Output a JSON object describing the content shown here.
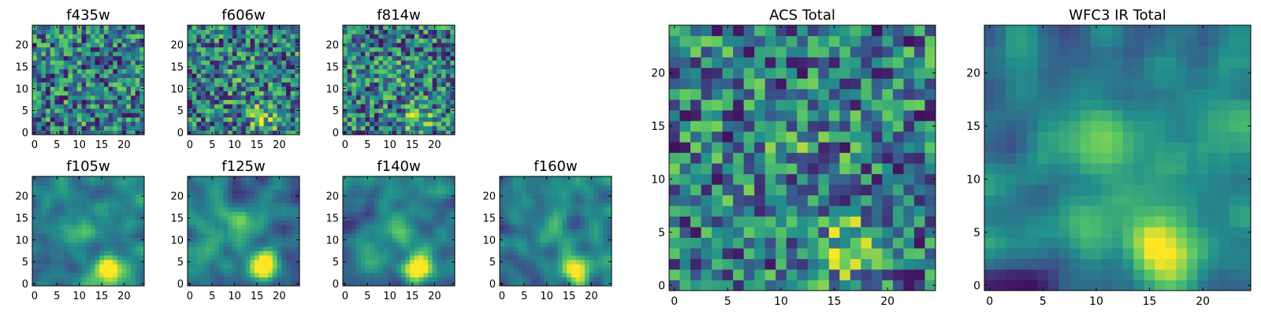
{
  "chart_data": [
    {
      "type": "heatmap",
      "title": "f435w",
      "pattern": "noise",
      "seed": 11,
      "grid_size": [
        25,
        25
      ],
      "x_ticks": [
        "0",
        "5",
        "10",
        "15",
        "20"
      ],
      "y_ticks": [
        "0",
        "5",
        "10",
        "15",
        "20"
      ]
    },
    {
      "type": "heatmap",
      "title": "f606w",
      "pattern": "noise-peak",
      "seed": 23,
      "grid_size": [
        25,
        25
      ],
      "x_ticks": [
        "0",
        "5",
        "10",
        "15",
        "20"
      ],
      "y_ticks": [
        "0",
        "5",
        "10",
        "15",
        "20"
      ]
    },
    {
      "type": "heatmap",
      "title": "f814w",
      "pattern": "noise-peak",
      "seed": 37,
      "grid_size": [
        25,
        25
      ],
      "x_ticks": [
        "0",
        "5",
        "10",
        "15",
        "20"
      ],
      "y_ticks": [
        "0",
        "5",
        "10",
        "15",
        "20"
      ]
    },
    {
      "type": "heatmap",
      "title": "f105w",
      "pattern": "smooth-peak",
      "seed": 41,
      "grid_size": [
        25,
        25
      ],
      "x_ticks": [
        "0",
        "5",
        "10",
        "15",
        "20"
      ],
      "y_ticks": [
        "0",
        "5",
        "10",
        "15",
        "20"
      ]
    },
    {
      "type": "heatmap",
      "title": "f125w",
      "pattern": "smooth-peak",
      "seed": 53,
      "grid_size": [
        25,
        25
      ],
      "x_ticks": [
        "0",
        "5",
        "10",
        "15",
        "20"
      ],
      "y_ticks": [
        "0",
        "5",
        "10",
        "15",
        "20"
      ]
    },
    {
      "type": "heatmap",
      "title": "f140w",
      "pattern": "smooth-peak",
      "seed": 67,
      "grid_size": [
        25,
        25
      ],
      "x_ticks": [
        "0",
        "5",
        "10",
        "15",
        "20"
      ],
      "y_ticks": [
        "0",
        "5",
        "10",
        "15",
        "20"
      ]
    },
    {
      "type": "heatmap",
      "title": "f160w",
      "pattern": "smooth-peak",
      "seed": 79,
      "grid_size": [
        25,
        25
      ],
      "x_ticks": [
        "0",
        "5",
        "10",
        "15",
        "20"
      ],
      "y_ticks": [
        "0",
        "5",
        "10",
        "15",
        "20"
      ]
    },
    {
      "type": "heatmap",
      "title": "ACS Total",
      "pattern": "noise-peak",
      "seed": 83,
      "grid_size": [
        25,
        25
      ],
      "x_ticks": [
        "0",
        "5",
        "10",
        "15",
        "20"
      ],
      "y_ticks": [
        "0",
        "5",
        "10",
        "15",
        "20"
      ]
    },
    {
      "type": "heatmap",
      "title": "WFC3 IR Total",
      "pattern": "smooth-peak",
      "seed": 97,
      "grid_size": [
        25,
        25
      ],
      "x_ticks": [
        "0",
        "5",
        "10",
        "15",
        "20"
      ],
      "y_ticks": [
        "0",
        "5",
        "10",
        "15",
        "20"
      ]
    }
  ],
  "colormap": [
    "#440154",
    "#3b528b",
    "#21918c",
    "#5ec962",
    "#fde725"
  ]
}
